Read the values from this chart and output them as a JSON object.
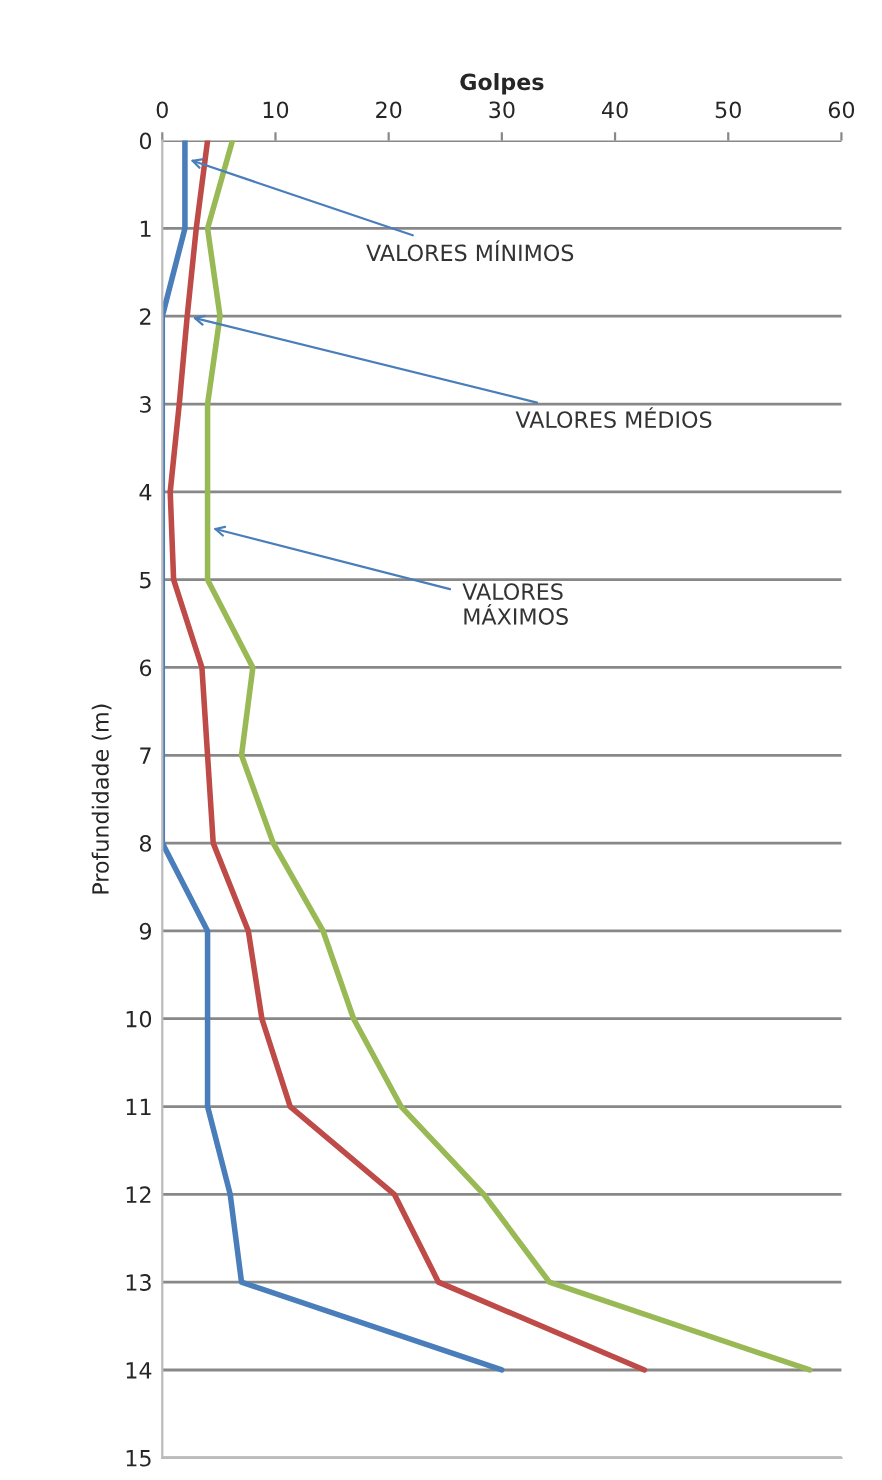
{
  "chart_data": {
    "type": "line",
    "xlabel": "Golpes",
    "ylabel": "Profundidade (m)",
    "xlim": [
      0,
      60
    ],
    "xticks": [
      0,
      10,
      20,
      30,
      40,
      50,
      60
    ],
    "ylim": [
      15,
      0
    ],
    "yticks": [
      0,
      1,
      2,
      3,
      4,
      5,
      6,
      7,
      8,
      9,
      10,
      11,
      12,
      13,
      14,
      15
    ],
    "grid": "y",
    "marker": "none",
    "line_style": "solid",
    "series": [
      {
        "color": "#4a7ebb",
        "x": [
          2,
          2,
          0,
          0,
          0,
          0,
          0,
          0,
          0,
          4,
          4,
          4,
          6,
          7,
          30
        ],
        "values": [
          0,
          1,
          2,
          3,
          4,
          5,
          6,
          7,
          8,
          9,
          10,
          11,
          12,
          13,
          14
        ]
      },
      {
        "color": "#be4b48",
        "x": [
          4,
          3,
          2.2,
          1.5,
          0.7,
          1,
          3.5,
          4,
          4.5,
          7.6,
          8.8,
          11.3,
          20.5,
          24.4,
          42.6
        ],
        "values": [
          0,
          1,
          2,
          3,
          4,
          5,
          6,
          7,
          8,
          9,
          10,
          11,
          12,
          13,
          14
        ]
      },
      {
        "color": "#98b954",
        "x": [
          6.2,
          4,
          5.1,
          4,
          4,
          4,
          8,
          7,
          9.8,
          14.2,
          16.9,
          21.1,
          28.4,
          34.2,
          57.2
        ],
        "values": [
          0,
          1,
          2,
          3,
          4,
          5,
          6,
          7,
          8,
          9,
          10,
          11,
          12,
          13,
          14
        ]
      }
    ],
    "annotations": [
      {
        "text": "VALORES MÍNIMOS",
        "x": 2,
        "y": 0.2
      },
      {
        "text": "VALORES MÉDIOS",
        "x": 2.2,
        "y": 2
      },
      {
        "text": "VALORES\nMÁXIMOS",
        "x": 4,
        "y": 4.4
      }
    ]
  }
}
